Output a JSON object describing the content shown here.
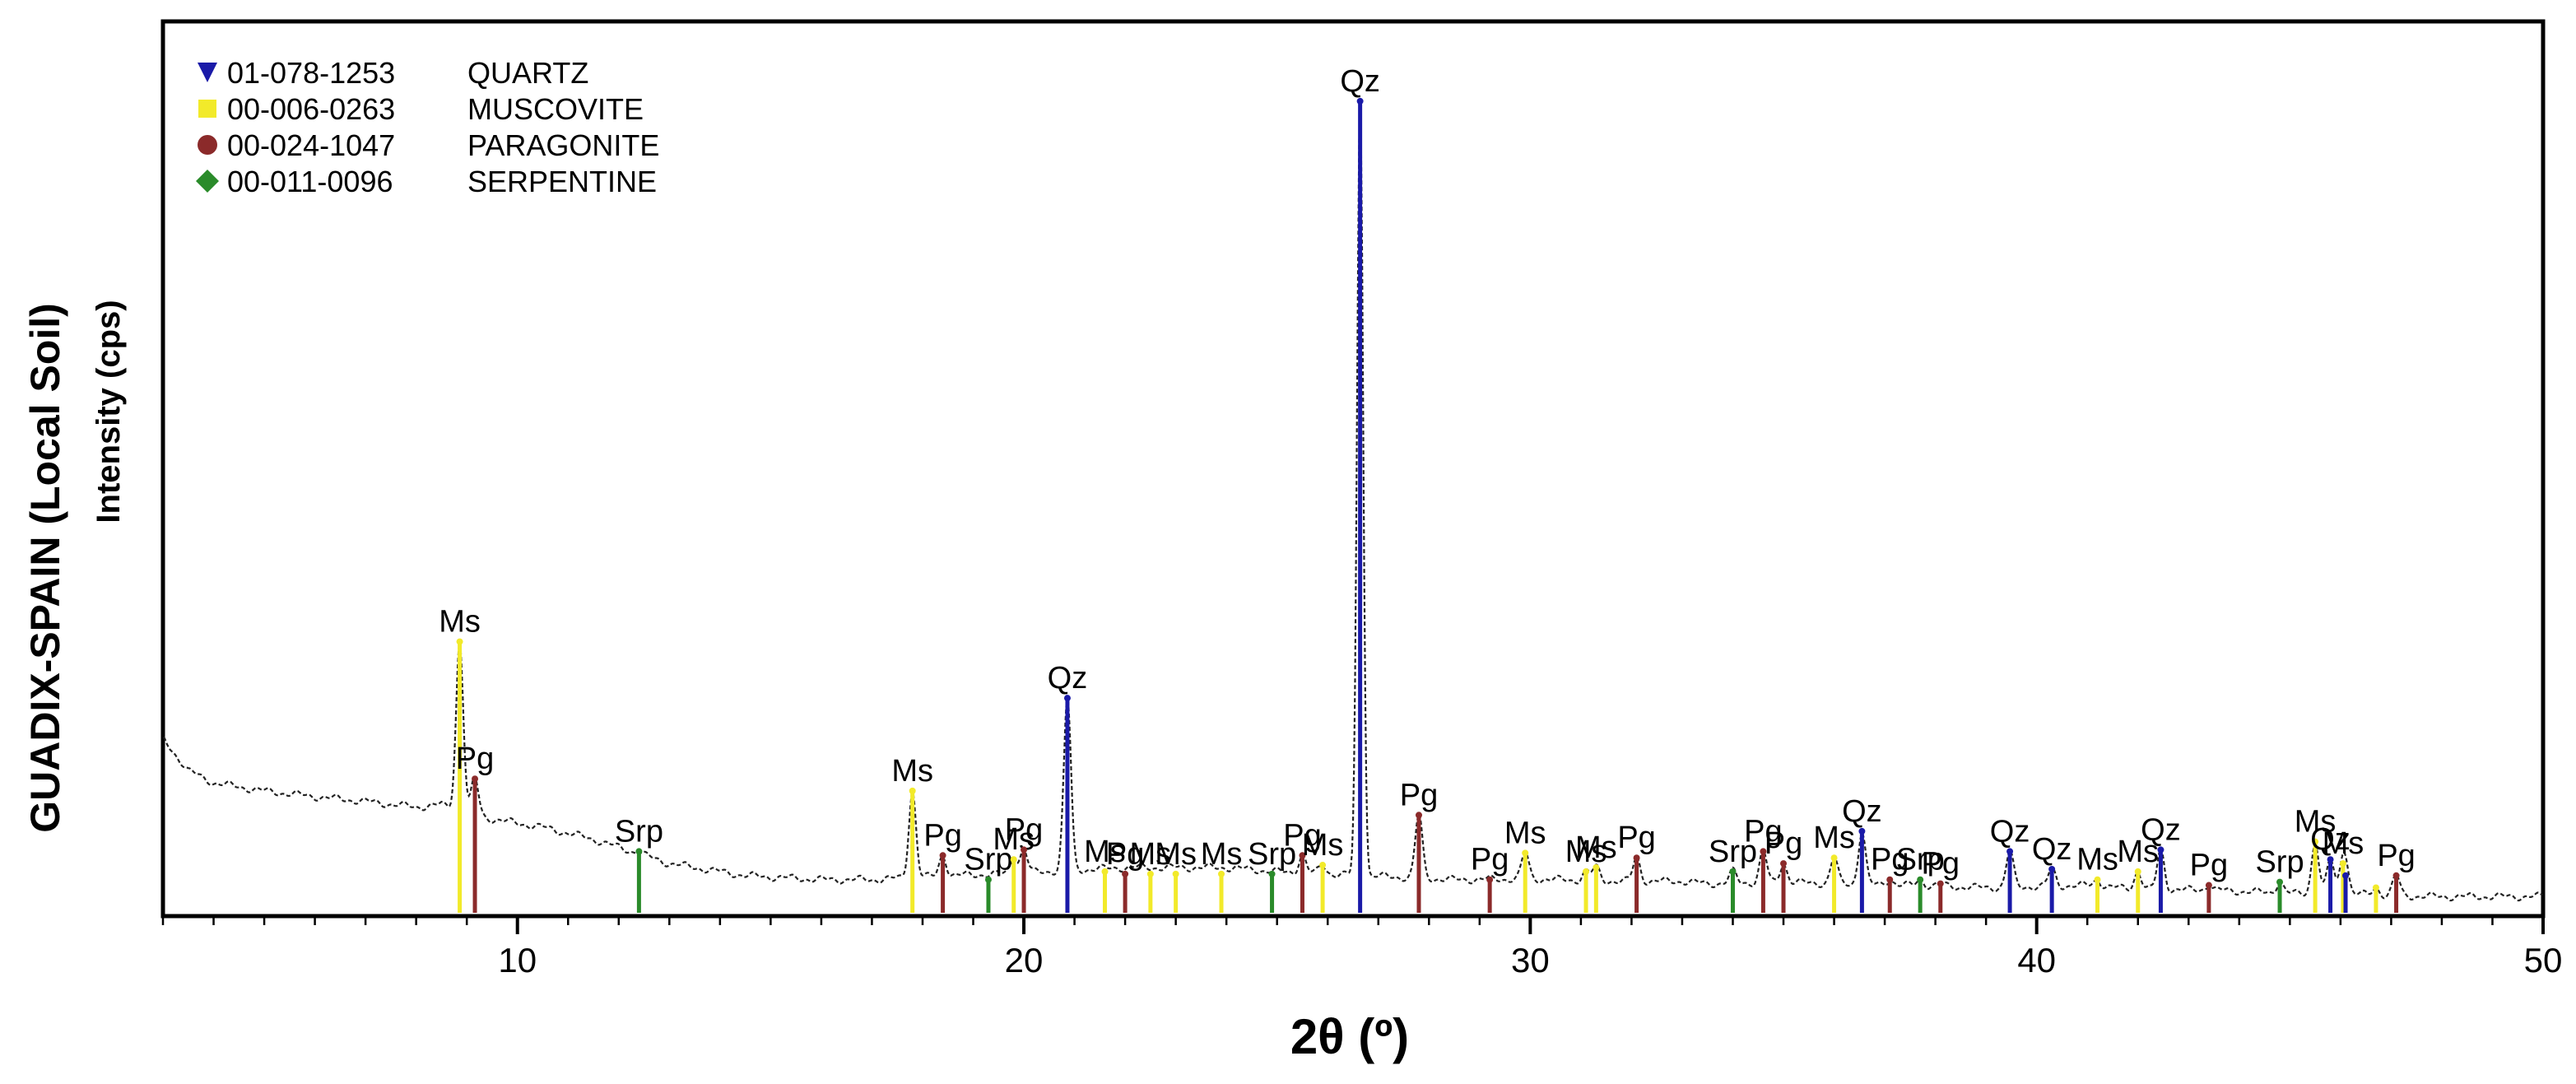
{
  "figure": {
    "title": "GUADIX-SPAIN (Local Soil)",
    "ylabel": "Intensity (cps)",
    "xlabel": "2θ (º)"
  },
  "colors": {
    "quartz": "#1a1aa8",
    "muscovite": "#f2ea2a",
    "paragonite": "#8b2a2a",
    "serpentine": "#2a8b2a",
    "pattern": "#222222",
    "axis": "#000000"
  },
  "chart_data": {
    "type": "line",
    "xlabel": "2θ (º)",
    "ylabel": "Intensity (cps)",
    "title": "GUADIX-SPAIN (Local Soil)",
    "xlim": [
      3,
      50
    ],
    "ylim": [
      0,
      100
    ],
    "xticks": [
      10,
      20,
      30,
      40,
      50
    ],
    "grid": false,
    "legend_position": "top-left",
    "legend": [
      {
        "code": "01-078-1253",
        "name": "QUARTZ",
        "marker": "triangle-down",
        "color_key": "quartz"
      },
      {
        "code": "00-006-0263",
        "name": "MUSCOVITE",
        "marker": "square",
        "color_key": "muscovite"
      },
      {
        "code": "00-024-1047",
        "name": "PARAGONITE",
        "marker": "circle",
        "color_key": "paragonite"
      },
      {
        "code": "00-011-0096",
        "name": "SERPENTINE",
        "marker": "diamond",
        "color_key": "serpentine"
      }
    ],
    "background": [
      [
        3.0,
        21.0
      ],
      [
        3.5,
        17.0
      ],
      [
        4.0,
        15.5
      ],
      [
        5.0,
        14.5
      ],
      [
        6.0,
        13.8
      ],
      [
        7.0,
        13.2
      ],
      [
        8.0,
        12.5
      ],
      [
        8.5,
        12.8
      ],
      [
        9.5,
        11.0
      ],
      [
        10.5,
        10.0
      ],
      [
        11.5,
        8.5
      ],
      [
        13.0,
        5.5
      ],
      [
        14.5,
        4.0
      ],
      [
        16.0,
        3.5
      ],
      [
        17.0,
        3.5
      ],
      [
        18.5,
        4.0
      ],
      [
        19.5,
        4.2
      ],
      [
        22.0,
        5.0
      ],
      [
        24.0,
        5.0
      ],
      [
        25.0,
        4.5
      ],
      [
        28.5,
        3.5
      ],
      [
        30.0,
        3.6
      ],
      [
        31.0,
        3.4
      ],
      [
        32.0,
        3.3
      ],
      [
        33.0,
        3.3
      ],
      [
        33.5,
        3.0
      ],
      [
        35.0,
        3.2
      ],
      [
        36.0,
        3.0
      ],
      [
        37.5,
        2.8
      ],
      [
        39.0,
        2.5
      ],
      [
        41.0,
        2.8
      ],
      [
        42.0,
        2.3
      ],
      [
        43.5,
        2.2
      ],
      [
        45.0,
        1.8
      ],
      [
        46.0,
        1.8
      ],
      [
        47.0,
        1.5
      ],
      [
        48.0,
        1.4
      ],
      [
        50.0,
        1.4
      ]
    ],
    "peaks": [
      {
        "phase": "muscovite",
        "x": 8.86,
        "height": 33,
        "label": "Ms"
      },
      {
        "phase": "paragonite",
        "x": 9.16,
        "height": 16,
        "label": "Pg"
      },
      {
        "phase": "serpentine",
        "x": 12.4,
        "height": 7,
        "label": "Srp"
      },
      {
        "phase": "muscovite",
        "x": 17.8,
        "height": 14.5,
        "label": "Ms"
      },
      {
        "phase": "paragonite",
        "x": 18.4,
        "height": 6.5,
        "label": "Pg"
      },
      {
        "phase": "serpentine",
        "x": 19.3,
        "height": 3.5,
        "label": "Srp"
      },
      {
        "phase": "muscovite",
        "x": 19.8,
        "height": 6.0,
        "label": "Ms"
      },
      {
        "phase": "paragonite",
        "x": 20.0,
        "height": 7.2,
        "label": "Pg"
      },
      {
        "phase": "quartz",
        "x": 20.86,
        "height": 26,
        "label": "Qz"
      },
      {
        "phase": "muscovite",
        "x": 21.6,
        "height": 4.5,
        "label": "Ms"
      },
      {
        "phase": "paragonite",
        "x": 22.0,
        "height": 4.2,
        "label": "Pg"
      },
      {
        "phase": "muscovite",
        "x": 22.5,
        "height": 4.2,
        "label": "Ms"
      },
      {
        "phase": "muscovite",
        "x": 23.0,
        "height": 4.2,
        "label": "Ms"
      },
      {
        "phase": "muscovite",
        "x": 23.9,
        "height": 4.2,
        "label": "Ms"
      },
      {
        "phase": "serpentine",
        "x": 24.9,
        "height": 4.2,
        "label": "Srp"
      },
      {
        "phase": "paragonite",
        "x": 25.5,
        "height": 6.5,
        "label": "Pg"
      },
      {
        "phase": "muscovite",
        "x": 25.9,
        "height": 5.3,
        "label": "Ms"
      },
      {
        "phase": "quartz",
        "x": 26.64,
        "height": 100,
        "label": "Qz"
      },
      {
        "phase": "paragonite",
        "x": 27.8,
        "height": 11.5,
        "label": "Pg"
      },
      {
        "phase": "paragonite",
        "x": 29.2,
        "height": 3.5,
        "label": "Pg"
      },
      {
        "phase": "muscovite",
        "x": 29.9,
        "height": 6.8,
        "label": "Ms"
      },
      {
        "phase": "muscovite",
        "x": 31.1,
        "height": 4.5,
        "label": "Ms"
      },
      {
        "phase": "muscovite",
        "x": 31.3,
        "height": 5.0,
        "label": "Ms"
      },
      {
        "phase": "paragonite",
        "x": 32.1,
        "height": 6.2,
        "label": "Pg"
      },
      {
        "phase": "serpentine",
        "x": 34.0,
        "height": 4.5,
        "label": "Srp"
      },
      {
        "phase": "paragonite",
        "x": 34.6,
        "height": 7.0,
        "label": "Pg"
      },
      {
        "phase": "paragonite",
        "x": 35.0,
        "height": 5.5,
        "label": "Pg"
      },
      {
        "phase": "muscovite",
        "x": 36.0,
        "height": 6.2,
        "label": "Ms"
      },
      {
        "phase": "quartz",
        "x": 36.55,
        "height": 9.5,
        "label": "Qz"
      },
      {
        "phase": "paragonite",
        "x": 37.1,
        "height": 3.5,
        "label": "Pg"
      },
      {
        "phase": "serpentine",
        "x": 37.7,
        "height": 3.5,
        "label": "Srp"
      },
      {
        "phase": "paragonite",
        "x": 38.1,
        "height": 3.0,
        "label": "Pg"
      },
      {
        "phase": "quartz",
        "x": 39.47,
        "height": 7.0,
        "label": "Qz"
      },
      {
        "phase": "quartz",
        "x": 40.3,
        "height": 4.8,
        "label": "Qz"
      },
      {
        "phase": "muscovite",
        "x": 41.2,
        "height": 3.5,
        "label": "Ms"
      },
      {
        "phase": "muscovite",
        "x": 42.0,
        "height": 4.5,
        "label": "Ms"
      },
      {
        "phase": "quartz",
        "x": 42.45,
        "height": 7.2,
        "label": "Qz"
      },
      {
        "phase": "paragonite",
        "x": 43.4,
        "height": 2.8,
        "label": "Pg"
      },
      {
        "phase": "serpentine",
        "x": 44.8,
        "height": 3.2,
        "label": "Srp"
      },
      {
        "phase": "muscovite",
        "x": 45.5,
        "height": 8.2,
        "label": "Ms"
      },
      {
        "phase": "quartz",
        "x": 45.8,
        "height": 6.0,
        "label": "Qz"
      },
      {
        "phase": "muscovite",
        "x": 46.05,
        "height": 5.5,
        "label": "Ms"
      },
      {
        "phase": "quartz",
        "x": 46.1,
        "height": 4.0,
        "label": ""
      },
      {
        "phase": "muscovite",
        "x": 46.7,
        "height": 2.5,
        "label": ""
      },
      {
        "phase": "paragonite",
        "x": 47.1,
        "height": 4.0,
        "label": "Pg"
      }
    ]
  }
}
